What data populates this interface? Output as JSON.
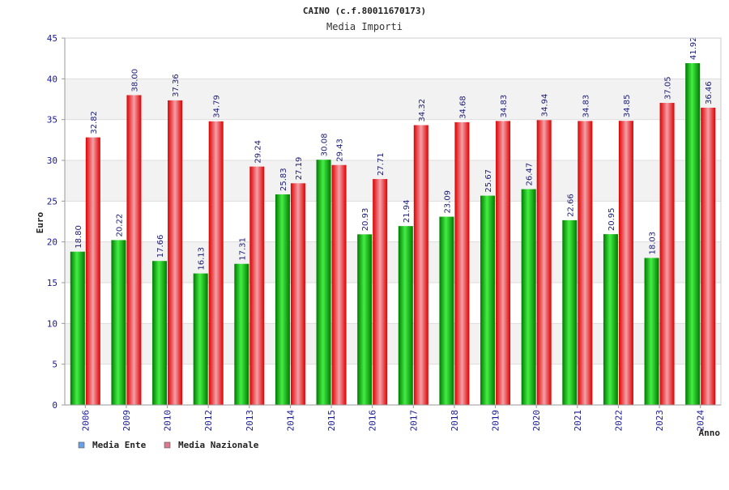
{
  "chart_data": {
    "type": "bar",
    "title": "CAINO (c.f.80011670173)",
    "subtitle": "Media Importi",
    "xlabel": "Anno",
    "ylabel": "Euro",
    "ylim": [
      0,
      45
    ],
    "yticks": [
      0,
      5,
      10,
      15,
      20,
      25,
      30,
      35,
      40,
      45
    ],
    "grid": true,
    "legend_position": "bottom-left",
    "categories": [
      "2006",
      "2009",
      "2010",
      "2012",
      "2013",
      "2014",
      "2015",
      "2016",
      "2017",
      "2018",
      "2019",
      "2020",
      "2021",
      "2022",
      "2023",
      "2024"
    ],
    "series": [
      {
        "name": "Media Ente",
        "values": [
          18.8,
          20.22,
          17.66,
          16.13,
          17.31,
          25.83,
          30.08,
          20.93,
          21.94,
          23.09,
          25.67,
          26.47,
          22.66,
          20.95,
          18.03,
          41.92
        ],
        "labels": [
          "18.80",
          "20.22",
          "17.66",
          "16.13",
          "17.31",
          "25.83",
          "30.08",
          "20.93",
          "21.94",
          "23.09",
          "25.67",
          "26.47",
          "22.66",
          "20.95",
          "18.03",
          "41.92"
        ]
      },
      {
        "name": "Media Nazionale",
        "values": [
          32.82,
          38.0,
          37.36,
          34.79,
          29.24,
          27.19,
          29.43,
          27.71,
          34.32,
          34.68,
          34.83,
          34.94,
          34.83,
          34.85,
          37.05,
          36.46
        ],
        "labels": [
          "32.82",
          "38.00",
          "37.36",
          "34.79",
          "29.24",
          "27.19",
          "29.43",
          "27.71",
          "34.32",
          "34.68",
          "34.83",
          "34.94",
          "34.83",
          "34.85",
          "37.05",
          "36.46"
        ]
      }
    ]
  },
  "colors": {
    "ente_dark": "#007a00",
    "ente_light": "#44ee44",
    "naz_dark": "#dd0000",
    "naz_light": "#f4a0a8",
    "legend_ente": "#6aa0e8",
    "legend_naz": "#d9788e",
    "band": "#f2f2f2",
    "grid": "#dddddd"
  }
}
